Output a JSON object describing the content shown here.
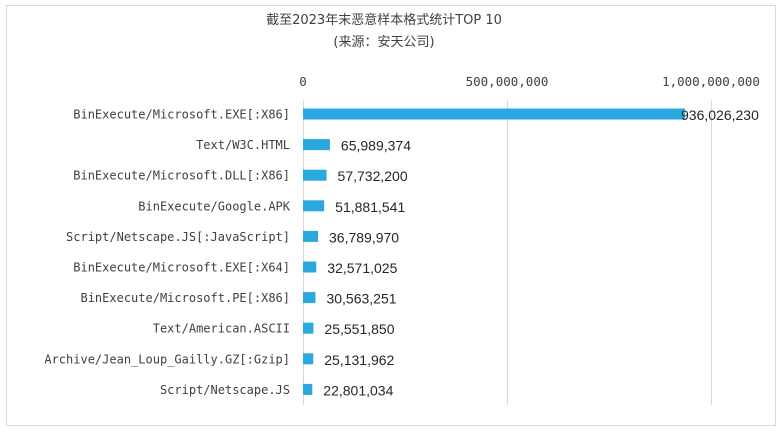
{
  "chart_data": {
    "type": "bar",
    "orientation": "horizontal",
    "title": "截至2023年末恶意样本格式统计TOP 10",
    "subtitle": "(来源：安天公司)",
    "xlabel": "",
    "ylabel": "",
    "xlim": [
      0,
      1000000000
    ],
    "x_ticks": [
      "0",
      "500,000,000",
      "1,000,000,000"
    ],
    "x_tick_values": [
      0,
      500000000,
      1000000000
    ],
    "x_axis_position": "top",
    "grid": true,
    "legend": "none",
    "bar_color": "#2aa8e0",
    "categories": [
      "BinExecute/Microsoft.EXE[:X86]",
      "Text/W3C.HTML",
      "BinExecute/Microsoft.DLL[:X86]",
      "BinExecute/Google.APK",
      "Script/Netscape.JS[:JavaScript]",
      "BinExecute/Microsoft.EXE[:X64]",
      "BinExecute/Microsoft.PE[:X86]",
      "Text/American.ASCII",
      "Archive/Jean_Loup_Gailly.GZ[:Gzip]",
      "Script/Netscape.JS"
    ],
    "values": [
      936026230,
      65989374,
      57732200,
      51881541,
      36789970,
      32571025,
      30563251,
      25551850,
      25131962,
      22801034
    ],
    "value_labels": [
      "936,026,230",
      "65,989,374",
      "57,732,200",
      "51,881,541",
      "36,789,970",
      "32,571,025",
      "30,563,251",
      "25,551,850",
      "25,131,962",
      "22,801,034"
    ]
  }
}
